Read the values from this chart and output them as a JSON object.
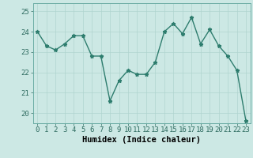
{
  "x": [
    0,
    1,
    2,
    3,
    4,
    5,
    6,
    7,
    8,
    9,
    10,
    11,
    12,
    13,
    14,
    15,
    16,
    17,
    18,
    19,
    20,
    21,
    22,
    23
  ],
  "y": [
    24.0,
    23.3,
    23.1,
    23.4,
    23.8,
    23.8,
    22.8,
    22.8,
    20.6,
    21.6,
    22.1,
    21.9,
    21.9,
    22.5,
    24.0,
    24.4,
    23.9,
    24.7,
    23.4,
    24.1,
    23.3,
    22.8,
    22.1,
    19.6
  ],
  "line_color": "#2e7d6e",
  "marker": "*",
  "marker_size": 3.5,
  "bg_color": "#cce8e4",
  "grid_color": "#b0d4cf",
  "xlabel": "Humidex (Indice chaleur)",
  "ylim": [
    19.5,
    25.4
  ],
  "yticks": [
    20,
    21,
    22,
    23,
    24,
    25
  ],
  "xticks": [
    0,
    1,
    2,
    3,
    4,
    5,
    6,
    7,
    8,
    9,
    10,
    11,
    12,
    13,
    14,
    15,
    16,
    17,
    18,
    19,
    20,
    21,
    22,
    23
  ],
  "xlabel_fontsize": 7.5,
  "tick_fontsize": 6.5,
  "line_width": 1.0
}
